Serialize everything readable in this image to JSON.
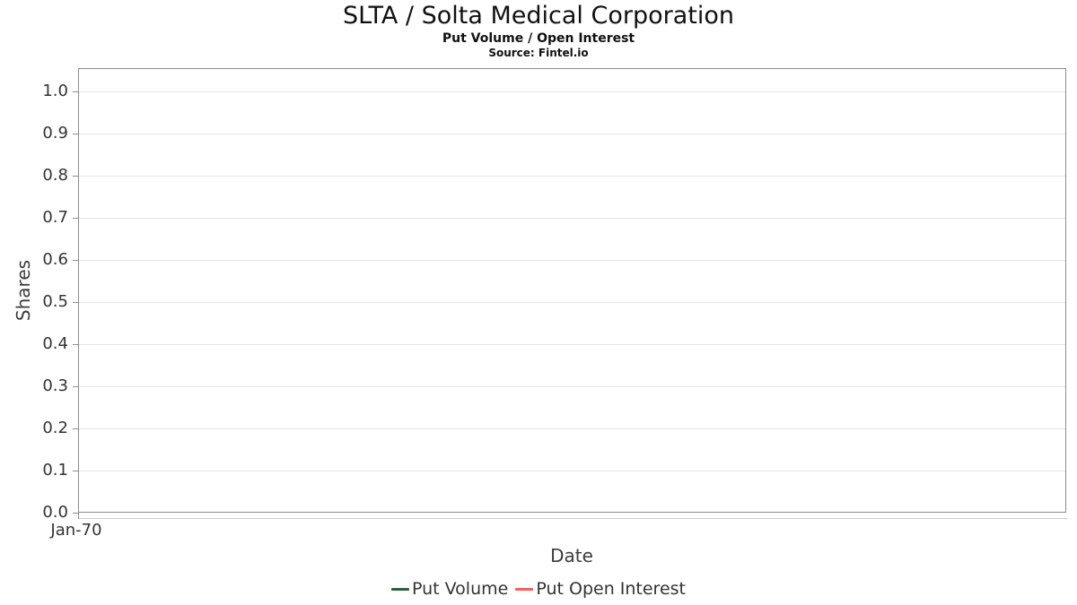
{
  "chart": {
    "title": "SLTA / Solta Medical Corporation",
    "subtitle": "Put Volume / Open Interest",
    "source": "Source: Fintel.io",
    "x_axis": {
      "label": "Date",
      "ticks": [
        "Jan-70"
      ]
    },
    "y_axis": {
      "label": "Shares",
      "ticks": [
        "1.0",
        "0.9",
        "0.8",
        "0.7",
        "0.6",
        "0.5",
        "0.4",
        "0.3",
        "0.2",
        "0.1",
        "0.0"
      ]
    },
    "legend": [
      {
        "label": "Put Volume",
        "color": "#2c5f3e"
      },
      {
        "label": "Put Open Interest",
        "color": "#f95f5f"
      }
    ],
    "colors": {
      "grid": "#e6e6e6",
      "plot_border": "#8c8c8c",
      "axis_line": "#c9c9c9",
      "tick": "#8c8c8c",
      "tick_text": "#333333",
      "title_text": "#111111"
    }
  },
  "chart_data": {
    "type": "line",
    "title": "SLTA / Solta Medical Corporation",
    "subtitle": "Put Volume / Open Interest",
    "source": "Source: Fintel.io",
    "xlabel": "Date",
    "ylabel": "Shares",
    "ylim": [
      0.0,
      1.0
    ],
    "y_tick_step": 0.1,
    "y_tick_labels": [
      "0.0",
      "0.1",
      "0.2",
      "0.3",
      "0.4",
      "0.5",
      "0.6",
      "0.7",
      "0.8",
      "0.9",
      "1.0"
    ],
    "x_tick_labels": [
      "Jan-70"
    ],
    "grid": true,
    "legend_position": "bottom",
    "series": [
      {
        "name": "Put Volume",
        "color": "#2c5f3e",
        "x": [],
        "values": []
      },
      {
        "name": "Put Open Interest",
        "color": "#f95f5f",
        "x": [],
        "values": []
      }
    ]
  }
}
